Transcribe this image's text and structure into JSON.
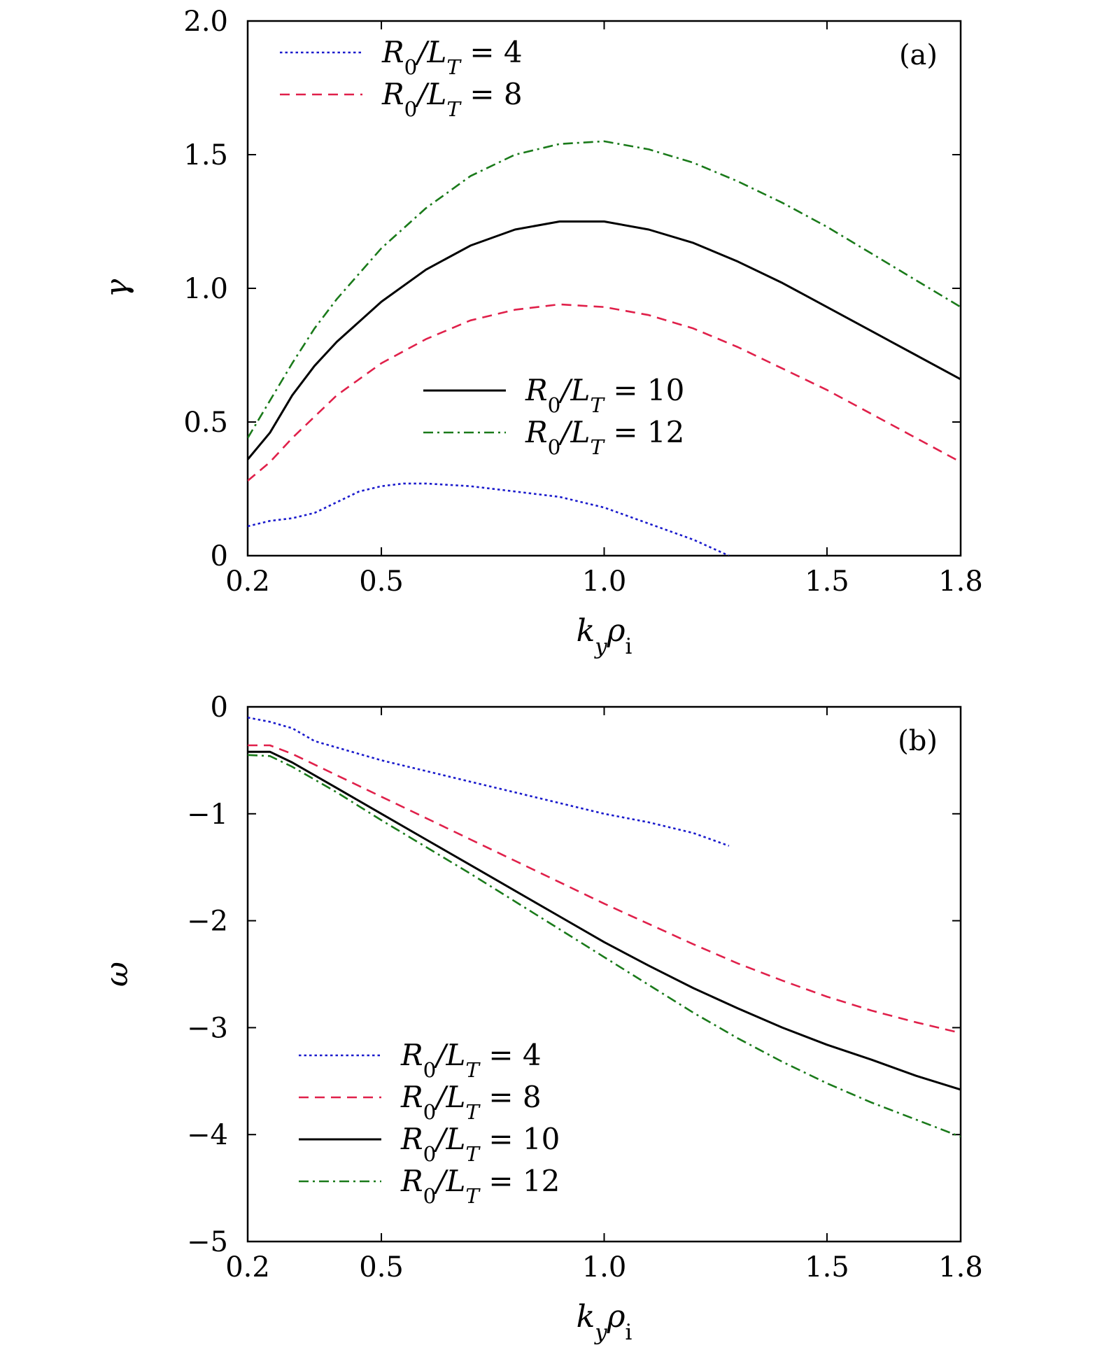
{
  "chart_data": [
    {
      "type": "line",
      "panel_label": "(a)",
      "xlabel": "k_y ρ_i",
      "ylabel": "γ",
      "xlim": [
        0.2,
        1.8
      ],
      "ylim": [
        0,
        2.0
      ],
      "xticks": [
        0.2,
        0.5,
        1.0,
        1.5,
        1.8
      ],
      "xtick_labels": [
        "0.2",
        "0.5",
        "1.0",
        "1.5",
        "1.8"
      ],
      "yticks": [
        0,
        0.5,
        1.0,
        1.5,
        2.0
      ],
      "ytick_labels": [
        "0",
        "0.5",
        "1.0",
        "1.5",
        "2.0"
      ],
      "series": [
        {
          "name": "R0/LT = 4",
          "color": "#1a1acc",
          "style": "dotted",
          "x": [
            0.2,
            0.25,
            0.3,
            0.35,
            0.4,
            0.45,
            0.5,
            0.55,
            0.6,
            0.7,
            0.8,
            0.9,
            1.0,
            1.1,
            1.2,
            1.28
          ],
          "y": [
            0.11,
            0.13,
            0.14,
            0.16,
            0.2,
            0.24,
            0.26,
            0.27,
            0.27,
            0.26,
            0.24,
            0.22,
            0.18,
            0.12,
            0.06,
            0.0
          ]
        },
        {
          "name": "R0/LT = 8",
          "color": "#e0204a",
          "style": "dashed",
          "x": [
            0.2,
            0.25,
            0.3,
            0.35,
            0.4,
            0.5,
            0.6,
            0.7,
            0.8,
            0.9,
            1.0,
            1.1,
            1.2,
            1.3,
            1.4,
            1.5,
            1.6,
            1.7,
            1.8
          ],
          "y": [
            0.28,
            0.35,
            0.44,
            0.52,
            0.6,
            0.72,
            0.81,
            0.88,
            0.92,
            0.94,
            0.93,
            0.9,
            0.85,
            0.78,
            0.7,
            0.62,
            0.53,
            0.44,
            0.35
          ]
        },
        {
          "name": "R0/LT = 10",
          "color": "#000000",
          "style": "solid",
          "x": [
            0.2,
            0.25,
            0.3,
            0.35,
            0.4,
            0.5,
            0.6,
            0.7,
            0.8,
            0.9,
            1.0,
            1.1,
            1.2,
            1.3,
            1.4,
            1.5,
            1.6,
            1.7,
            1.8
          ],
          "y": [
            0.36,
            0.46,
            0.6,
            0.71,
            0.8,
            0.95,
            1.07,
            1.16,
            1.22,
            1.25,
            1.25,
            1.22,
            1.17,
            1.1,
            1.02,
            0.93,
            0.84,
            0.75,
            0.66
          ]
        },
        {
          "name": "R0/LT = 12",
          "color": "#1a7a1a",
          "style": "dashdot",
          "x": [
            0.2,
            0.25,
            0.3,
            0.35,
            0.4,
            0.5,
            0.6,
            0.7,
            0.8,
            0.9,
            1.0,
            1.1,
            1.2,
            1.3,
            1.4,
            1.5,
            1.6,
            1.7,
            1.8
          ],
          "y": [
            0.44,
            0.58,
            0.72,
            0.85,
            0.96,
            1.15,
            1.3,
            1.42,
            1.5,
            1.54,
            1.55,
            1.52,
            1.47,
            1.4,
            1.32,
            1.23,
            1.13,
            1.03,
            0.93
          ]
        }
      ]
    },
    {
      "type": "line",
      "panel_label": "(b)",
      "xlabel": "k_y ρ_i",
      "ylabel": "ω",
      "xlim": [
        0.2,
        1.8
      ],
      "ylim": [
        -5,
        0
      ],
      "xticks": [
        0.2,
        0.5,
        1.0,
        1.5,
        1.8
      ],
      "xtick_labels": [
        "0.2",
        "0.5",
        "1.0",
        "1.5",
        "1.8"
      ],
      "yticks": [
        0,
        -1,
        -2,
        -3,
        -4,
        -5
      ],
      "ytick_labels": [
        "0",
        "−1",
        "−2",
        "−3",
        "−4",
        "−5"
      ],
      "series": [
        {
          "name": "R0/LT = 4",
          "color": "#1a1acc",
          "style": "dotted",
          "x": [
            0.2,
            0.25,
            0.3,
            0.35,
            0.4,
            0.5,
            0.6,
            0.7,
            0.8,
            0.9,
            1.0,
            1.1,
            1.2,
            1.28
          ],
          "y": [
            -0.1,
            -0.14,
            -0.2,
            -0.32,
            -0.38,
            -0.5,
            -0.6,
            -0.7,
            -0.8,
            -0.9,
            -1.0,
            -1.08,
            -1.18,
            -1.3
          ]
        },
        {
          "name": "R0/LT = 8",
          "color": "#e0204a",
          "style": "dashed",
          "x": [
            0.2,
            0.25,
            0.3,
            0.4,
            0.5,
            0.6,
            0.7,
            0.8,
            0.9,
            1.0,
            1.1,
            1.2,
            1.3,
            1.4,
            1.5,
            1.6,
            1.7,
            1.8
          ],
          "y": [
            -0.36,
            -0.36,
            -0.44,
            -0.64,
            -0.84,
            -1.04,
            -1.24,
            -1.44,
            -1.64,
            -1.84,
            -2.03,
            -2.22,
            -2.4,
            -2.56,
            -2.71,
            -2.84,
            -2.95,
            -3.05
          ]
        },
        {
          "name": "R0/LT = 10",
          "color": "#000000",
          "style": "solid",
          "x": [
            0.2,
            0.25,
            0.3,
            0.4,
            0.5,
            0.6,
            0.7,
            0.8,
            0.9,
            1.0,
            1.1,
            1.2,
            1.3,
            1.4,
            1.5,
            1.6,
            1.7,
            1.8
          ],
          "y": [
            -0.42,
            -0.42,
            -0.52,
            -0.76,
            -1.0,
            -1.24,
            -1.48,
            -1.72,
            -1.96,
            -2.2,
            -2.42,
            -2.63,
            -2.82,
            -3.0,
            -3.16,
            -3.3,
            -3.45,
            -3.58
          ]
        },
        {
          "name": "R0/LT = 12",
          "color": "#1a7a1a",
          "style": "dashdot",
          "x": [
            0.2,
            0.25,
            0.3,
            0.4,
            0.5,
            0.6,
            0.7,
            0.8,
            0.9,
            1.0,
            1.1,
            1.2,
            1.3,
            1.4,
            1.5,
            1.6,
            1.7,
            1.8
          ],
          "y": [
            -0.45,
            -0.46,
            -0.56,
            -0.8,
            -1.06,
            -1.31,
            -1.56,
            -1.82,
            -2.08,
            -2.34,
            -2.6,
            -2.86,
            -3.1,
            -3.32,
            -3.52,
            -3.7,
            -3.86,
            -4.02
          ]
        }
      ]
    }
  ]
}
